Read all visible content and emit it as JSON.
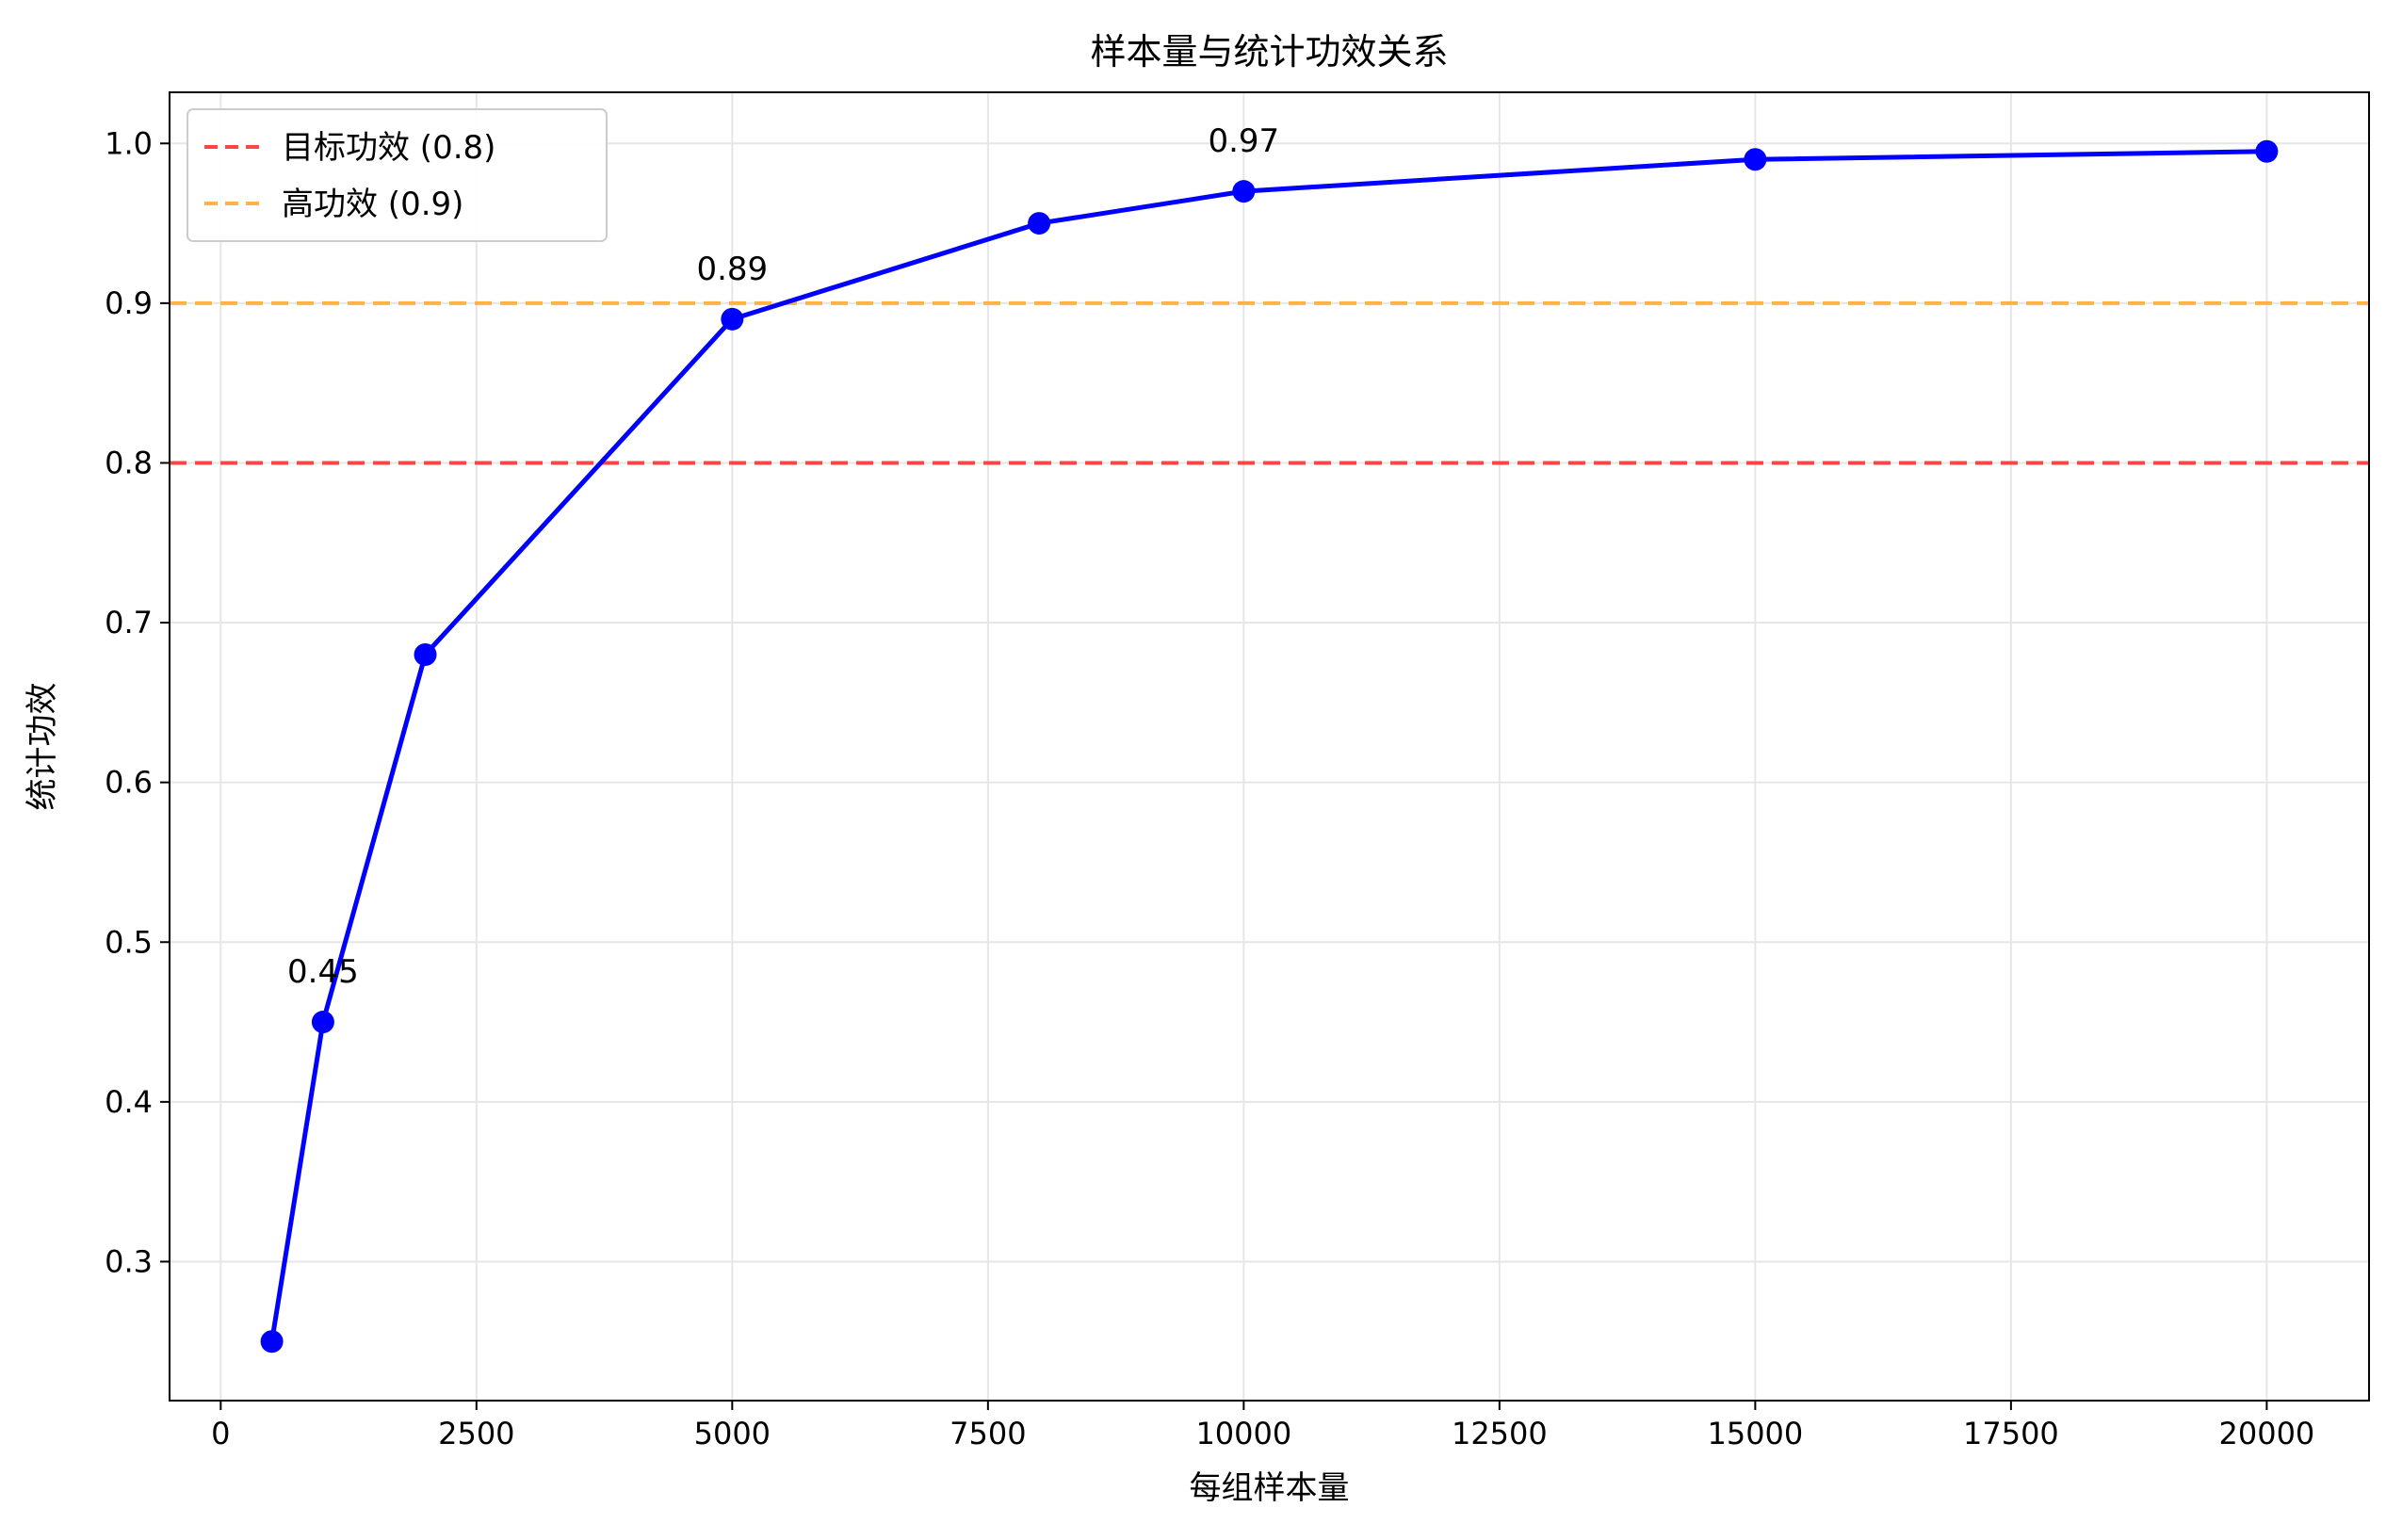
{
  "chart_data": {
    "type": "line",
    "title": "样本量与统计功效关系",
    "xlabel": "每组样本量",
    "ylabel": "统计功效",
    "xlim": [
      -500,
      21000
    ],
    "ylim": [
      0.213,
      1.032
    ],
    "xticks": [
      0,
      2500,
      5000,
      7500,
      10000,
      12500,
      15000,
      17500,
      20000
    ],
    "xtick_labels": [
      "0",
      "2500",
      "5000",
      "7500",
      "10000",
      "12500",
      "15000",
      "17500",
      "20000"
    ],
    "yticks": [
      0.3,
      0.4,
      0.5,
      0.6,
      0.7,
      0.8,
      0.9,
      1.0
    ],
    "ytick_labels": [
      "0.3",
      "0.4",
      "0.5",
      "0.6",
      "0.7",
      "0.8",
      "0.9",
      "1.0"
    ],
    "grid": true,
    "legend_position": "top-left",
    "series": [
      {
        "color": "#0000ff",
        "x": [
          500,
          1000,
          2000,
          5000,
          8000,
          10000,
          15000,
          20000
        ],
        "y": [
          0.25,
          0.45,
          0.68,
          0.89,
          0.95,
          0.97,
          0.99,
          0.995
        ]
      }
    ],
    "reference_lines": [
      {
        "name": "目标功效 (0.8)",
        "y": 0.8,
        "color": "#ff4444",
        "style": "dashed"
      },
      {
        "name": "高功效 (0.9)",
        "y": 0.9,
        "color": "#ffb347",
        "style": "dashed"
      }
    ],
    "annotations": [
      {
        "x": 1000,
        "y": 0.45,
        "text": "0.45"
      },
      {
        "x": 5000,
        "y": 0.89,
        "text": "0.89"
      },
      {
        "x": 10000,
        "y": 0.97,
        "text": "0.97"
      }
    ]
  }
}
